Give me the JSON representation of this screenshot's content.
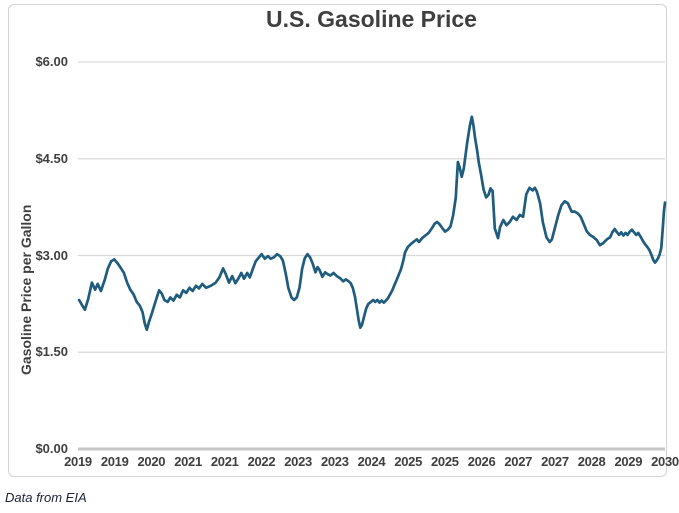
{
  "header": {
    "title": "U.S. Gasoline Price"
  },
  "footer": {
    "source_note": "Data from EIA"
  },
  "colors": {
    "line": "#1f5c7e",
    "gridline": "#d9d9d9",
    "axis_line": "#c7c7c7",
    "text": "#3f3f3f",
    "footer_text": "#20243a",
    "card_border": "#d3d3d3",
    "background": "#ffffff"
  },
  "chart_data": {
    "type": "line",
    "title": "U.S. Gasoline Price",
    "xlabel": "",
    "ylabel": "Gasoline Price per Gallon",
    "xlim": [
      2019,
      2030
    ],
    "ylim": [
      0,
      6
    ],
    "grid": "horizontal",
    "legend": "none",
    "yticks": [
      {
        "value": 0.0,
        "label": "$0.00"
      },
      {
        "value": 1.5,
        "label": "$1.50"
      },
      {
        "value": 3.0,
        "label": "$3.00"
      },
      {
        "value": 4.5,
        "label": "$4.50"
      },
      {
        "value": 6.0,
        "label": "$6.00"
      }
    ],
    "xticks": [
      {
        "value": 2019.0,
        "label": "2019"
      },
      {
        "value": 2019.6875,
        "label": "2019"
      },
      {
        "value": 2020.375,
        "label": "2020"
      },
      {
        "value": 2021.0625,
        "label": "2021"
      },
      {
        "value": 2021.75,
        "label": "2021"
      },
      {
        "value": 2022.4375,
        "label": "2022"
      },
      {
        "value": 2023.125,
        "label": "2023"
      },
      {
        "value": 2023.8125,
        "label": "2023"
      },
      {
        "value": 2024.5,
        "label": "2024"
      },
      {
        "value": 2025.1875,
        "label": "2025"
      },
      {
        "value": 2025.875,
        "label": "2025"
      },
      {
        "value": 2026.5625,
        "label": "2026"
      },
      {
        "value": 2027.25,
        "label": "2027"
      },
      {
        "value": 2027.9375,
        "label": "2027"
      },
      {
        "value": 2028.625,
        "label": "2028"
      },
      {
        "value": 2029.3125,
        "label": "2029"
      },
      {
        "value": 2030.0,
        "label": "2030"
      }
    ],
    "series": [
      {
        "name": "Gasoline Price per Gallon",
        "points": [
          [
            2019.02,
            2.31
          ],
          [
            2019.07,
            2.24
          ],
          [
            2019.13,
            2.16
          ],
          [
            2019.19,
            2.32
          ],
          [
            2019.26,
            2.58
          ],
          [
            2019.32,
            2.47
          ],
          [
            2019.37,
            2.56
          ],
          [
            2019.43,
            2.45
          ],
          [
            2019.5,
            2.62
          ],
          [
            2019.56,
            2.8
          ],
          [
            2019.62,
            2.91
          ],
          [
            2019.68,
            2.94
          ],
          [
            2019.74,
            2.88
          ],
          [
            2019.8,
            2.81
          ],
          [
            2019.86,
            2.73
          ],
          [
            2019.92,
            2.58
          ],
          [
            2019.98,
            2.47
          ],
          [
            2020.04,
            2.4
          ],
          [
            2020.1,
            2.28
          ],
          [
            2020.16,
            2.22
          ],
          [
            2020.21,
            2.12
          ],
          [
            2020.25,
            1.95
          ],
          [
            2020.29,
            1.85
          ],
          [
            2020.33,
            1.97
          ],
          [
            2020.39,
            2.12
          ],
          [
            2020.45,
            2.28
          ],
          [
            2020.52,
            2.46
          ],
          [
            2020.57,
            2.41
          ],
          [
            2020.62,
            2.31
          ],
          [
            2020.68,
            2.28
          ],
          [
            2020.73,
            2.35
          ],
          [
            2020.79,
            2.3
          ],
          [
            2020.85,
            2.39
          ],
          [
            2020.91,
            2.35
          ],
          [
            2020.97,
            2.46
          ],
          [
            2021.03,
            2.42
          ],
          [
            2021.09,
            2.5
          ],
          [
            2021.15,
            2.45
          ],
          [
            2021.21,
            2.53
          ],
          [
            2021.27,
            2.49
          ],
          [
            2021.33,
            2.56
          ],
          [
            2021.4,
            2.5
          ],
          [
            2021.49,
            2.53
          ],
          [
            2021.58,
            2.58
          ],
          [
            2021.65,
            2.66
          ],
          [
            2021.72,
            2.8
          ],
          [
            2021.77,
            2.71
          ],
          [
            2021.83,
            2.58
          ],
          [
            2021.89,
            2.68
          ],
          [
            2021.95,
            2.57
          ],
          [
            2022.01,
            2.65
          ],
          [
            2022.06,
            2.73
          ],
          [
            2022.11,
            2.64
          ],
          [
            2022.17,
            2.73
          ],
          [
            2022.22,
            2.66
          ],
          [
            2022.28,
            2.8
          ],
          [
            2022.33,
            2.91
          ],
          [
            2022.39,
            2.97
          ],
          [
            2022.44,
            3.02
          ],
          [
            2022.5,
            2.95
          ],
          [
            2022.56,
            2.99
          ],
          [
            2022.61,
            2.95
          ],
          [
            2022.67,
            2.97
          ],
          [
            2022.73,
            3.02
          ],
          [
            2022.79,
            2.99
          ],
          [
            2022.84,
            2.92
          ],
          [
            2022.89,
            2.73
          ],
          [
            2022.94,
            2.5
          ],
          [
            2023.0,
            2.35
          ],
          [
            2023.05,
            2.31
          ],
          [
            2023.1,
            2.35
          ],
          [
            2023.15,
            2.5
          ],
          [
            2023.2,
            2.79
          ],
          [
            2023.25,
            2.96
          ],
          [
            2023.3,
            3.02
          ],
          [
            2023.35,
            2.97
          ],
          [
            2023.4,
            2.87
          ],
          [
            2023.45,
            2.74
          ],
          [
            2023.49,
            2.82
          ],
          [
            2023.53,
            2.77
          ],
          [
            2023.58,
            2.67
          ],
          [
            2023.63,
            2.74
          ],
          [
            2023.68,
            2.71
          ],
          [
            2023.73,
            2.69
          ],
          [
            2023.79,
            2.73
          ],
          [
            2023.85,
            2.68
          ],
          [
            2023.91,
            2.65
          ],
          [
            2023.97,
            2.6
          ],
          [
            2024.02,
            2.63
          ],
          [
            2024.07,
            2.6
          ],
          [
            2024.11,
            2.57
          ],
          [
            2024.15,
            2.5
          ],
          [
            2024.19,
            2.36
          ],
          [
            2024.23,
            2.15
          ],
          [
            2024.26,
            1.99
          ],
          [
            2024.29,
            1.88
          ],
          [
            2024.32,
            1.92
          ],
          [
            2024.36,
            2.05
          ],
          [
            2024.4,
            2.18
          ],
          [
            2024.44,
            2.25
          ],
          [
            2024.49,
            2.28
          ],
          [
            2024.53,
            2.31
          ],
          [
            2024.57,
            2.28
          ],
          [
            2024.61,
            2.31
          ],
          [
            2024.65,
            2.27
          ],
          [
            2024.69,
            2.3
          ],
          [
            2024.73,
            2.27
          ],
          [
            2024.77,
            2.3
          ],
          [
            2024.81,
            2.34
          ],
          [
            2024.85,
            2.4
          ],
          [
            2024.89,
            2.46
          ],
          [
            2024.93,
            2.54
          ],
          [
            2024.97,
            2.62
          ],
          [
            2025.01,
            2.7
          ],
          [
            2025.05,
            2.78
          ],
          [
            2025.09,
            2.9
          ],
          [
            2025.13,
            3.05
          ],
          [
            2025.18,
            3.13
          ],
          [
            2025.24,
            3.18
          ],
          [
            2025.3,
            3.22
          ],
          [
            2025.35,
            3.25
          ],
          [
            2025.39,
            3.21
          ],
          [
            2025.45,
            3.27
          ],
          [
            2025.51,
            3.31
          ],
          [
            2025.57,
            3.35
          ],
          [
            2025.63,
            3.42
          ],
          [
            2025.68,
            3.49
          ],
          [
            2025.73,
            3.52
          ],
          [
            2025.78,
            3.48
          ],
          [
            2025.83,
            3.42
          ],
          [
            2025.88,
            3.37
          ],
          [
            2025.93,
            3.4
          ],
          [
            2025.98,
            3.45
          ],
          [
            2026.03,
            3.62
          ],
          [
            2026.08,
            3.9
          ],
          [
            2026.1,
            4.2
          ],
          [
            2026.12,
            4.45
          ],
          [
            2026.15,
            4.37
          ],
          [
            2026.19,
            4.22
          ],
          [
            2026.23,
            4.35
          ],
          [
            2026.29,
            4.73
          ],
          [
            2026.34,
            5.0
          ],
          [
            2026.38,
            5.15
          ],
          [
            2026.41,
            5.02
          ],
          [
            2026.44,
            4.83
          ],
          [
            2026.48,
            4.62
          ],
          [
            2026.51,
            4.44
          ],
          [
            2026.55,
            4.27
          ],
          [
            2026.6,
            4.02
          ],
          [
            2026.65,
            3.9
          ],
          [
            2026.69,
            3.94
          ],
          [
            2026.73,
            4.04
          ],
          [
            2026.77,
            4.0
          ],
          [
            2026.81,
            3.42
          ],
          [
            2026.87,
            3.27
          ],
          [
            2026.91,
            3.44
          ],
          [
            2026.97,
            3.55
          ],
          [
            2027.03,
            3.47
          ],
          [
            2027.09,
            3.52
          ],
          [
            2027.15,
            3.6
          ],
          [
            2027.22,
            3.55
          ],
          [
            2027.28,
            3.63
          ],
          [
            2027.34,
            3.6
          ],
          [
            2027.4,
            3.95
          ],
          [
            2027.46,
            4.05
          ],
          [
            2027.52,
            4.01
          ],
          [
            2027.56,
            4.05
          ],
          [
            2027.6,
            3.99
          ],
          [
            2027.66,
            3.81
          ],
          [
            2027.71,
            3.52
          ],
          [
            2027.78,
            3.28
          ],
          [
            2027.84,
            3.21
          ],
          [
            2027.88,
            3.25
          ],
          [
            2027.94,
            3.44
          ],
          [
            2028.0,
            3.63
          ],
          [
            2028.06,
            3.78
          ],
          [
            2028.12,
            3.84
          ],
          [
            2028.18,
            3.81
          ],
          [
            2028.25,
            3.68
          ],
          [
            2028.31,
            3.68
          ],
          [
            2028.37,
            3.65
          ],
          [
            2028.42,
            3.6
          ],
          [
            2028.47,
            3.5
          ],
          [
            2028.53,
            3.38
          ],
          [
            2028.59,
            3.32
          ],
          [
            2028.65,
            3.29
          ],
          [
            2028.72,
            3.24
          ],
          [
            2028.78,
            3.16
          ],
          [
            2028.84,
            3.19
          ],
          [
            2028.91,
            3.25
          ],
          [
            2028.97,
            3.28
          ],
          [
            2029.02,
            3.37
          ],
          [
            2029.06,
            3.41
          ],
          [
            2029.1,
            3.36
          ],
          [
            2029.14,
            3.32
          ],
          [
            2029.18,
            3.36
          ],
          [
            2029.22,
            3.31
          ],
          [
            2029.26,
            3.35
          ],
          [
            2029.3,
            3.32
          ],
          [
            2029.34,
            3.37
          ],
          [
            2029.38,
            3.4
          ],
          [
            2029.42,
            3.36
          ],
          [
            2029.46,
            3.32
          ],
          [
            2029.5,
            3.35
          ],
          [
            2029.55,
            3.28
          ],
          [
            2029.59,
            3.22
          ],
          [
            2029.63,
            3.17
          ],
          [
            2029.67,
            3.13
          ],
          [
            2029.71,
            3.08
          ],
          [
            2029.75,
            3.0
          ],
          [
            2029.78,
            2.93
          ],
          [
            2029.81,
            2.89
          ],
          [
            2029.84,
            2.92
          ],
          [
            2029.87,
            2.96
          ],
          [
            2029.9,
            3.02
          ],
          [
            2029.93,
            3.12
          ],
          [
            2029.96,
            3.45
          ],
          [
            2029.98,
            3.68
          ],
          [
            2030.0,
            3.82
          ]
        ]
      }
    ]
  }
}
